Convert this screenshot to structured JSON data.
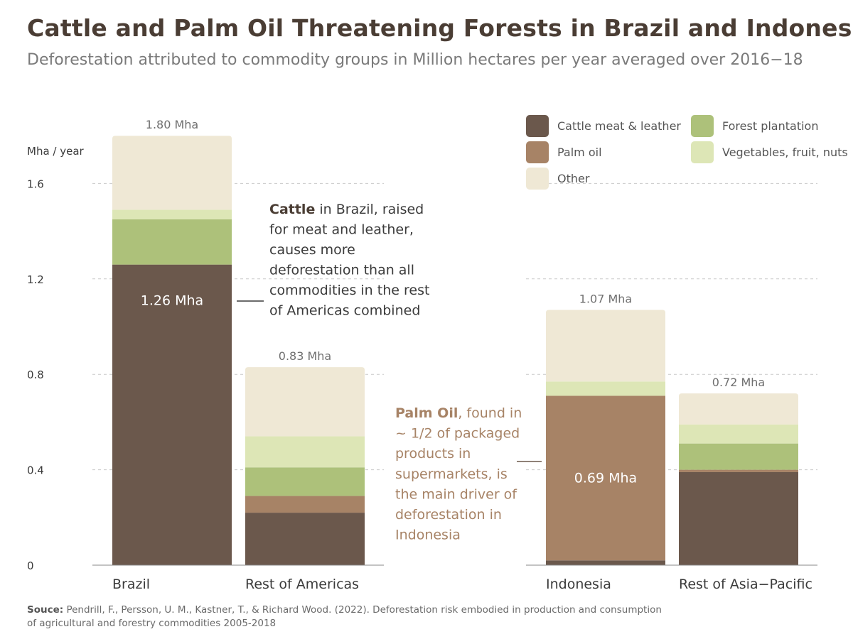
{
  "title": "Cattle and Palm Oil Threatening Forests in Brazil and Indonesia",
  "subtitle": "Deforestation attributed to commodity groups in Million hectares per year averaged over 2016−18",
  "source": {
    "label": "Souce:",
    "text_line1": "Pendrill, F., Persson, U. M., Kastner, T., & Richard Wood. (2022). Deforestation risk embodied in production and consumption",
    "text_line2": "of agricultural and forestry commodities 2005-2018"
  },
  "annotations": {
    "cattle": {
      "bold": "Cattle",
      "lines": [
        " in Brazil, raised",
        "for meat and leather,",
        "causes more",
        "deforestation than all",
        "commodities in the rest",
        "of Americas combined"
      ]
    },
    "palm": {
      "bold": "Palm Oil",
      "lines": [
        ", found in",
        "~ 1/2 of packaged",
        "products in",
        "supermarkets, is",
        "the main driver of",
        "deforestation in",
        "Indonesia"
      ]
    }
  },
  "colors": {
    "Cattle meat & leather": "#6b584c",
    "Palm oil": "#a78366",
    "Forest plantation": "#adc17a",
    "Vegetables, fruit, nuts": "#dde6b6",
    "Other": "#efe8d5",
    "palm_annotation": "#a78366",
    "cattle_annotation": "#4a3d34"
  },
  "chart_data": {
    "type": "bar",
    "stacked": true,
    "ylabel": "Mha / year",
    "ylim": [
      0,
      1.8
    ],
    "yticks": [
      "0",
      "0.4",
      "0.8",
      "1.2",
      "1.6"
    ],
    "grid": true,
    "legend_position": "top-right",
    "legend": [
      "Cattle meat & leather",
      "Forest plantation",
      "Palm oil",
      "Vegetables, fruit, nuts",
      "Other"
    ],
    "categories": [
      "Brazil",
      "Rest of Americas",
      "Indonesia",
      "Rest of Asia−Pacific"
    ],
    "series": [
      {
        "name": "Cattle meat & leather",
        "values": [
          1.26,
          0.22,
          0.02,
          0.39
        ]
      },
      {
        "name": "Palm oil",
        "values": [
          0.0,
          0.07,
          0.69,
          0.01
        ]
      },
      {
        "name": "Forest plantation",
        "values": [
          0.19,
          0.12,
          0.0,
          0.11
        ]
      },
      {
        "name": "Vegetables, fruit, nuts",
        "values": [
          0.04,
          0.13,
          0.06,
          0.08
        ]
      },
      {
        "name": "Other",
        "values": [
          0.31,
          0.29,
          0.3,
          0.13
        ]
      }
    ],
    "total_labels": [
      "1.80 Mha",
      "0.83 Mha",
      "1.07 Mha",
      "0.72 Mha"
    ],
    "inner_labels": [
      {
        "category": "Brazil",
        "series": "Cattle meat & leather",
        "text": "1.26 Mha"
      },
      {
        "category": "Indonesia",
        "series": "Palm oil",
        "text": "0.69 Mha"
      }
    ]
  }
}
